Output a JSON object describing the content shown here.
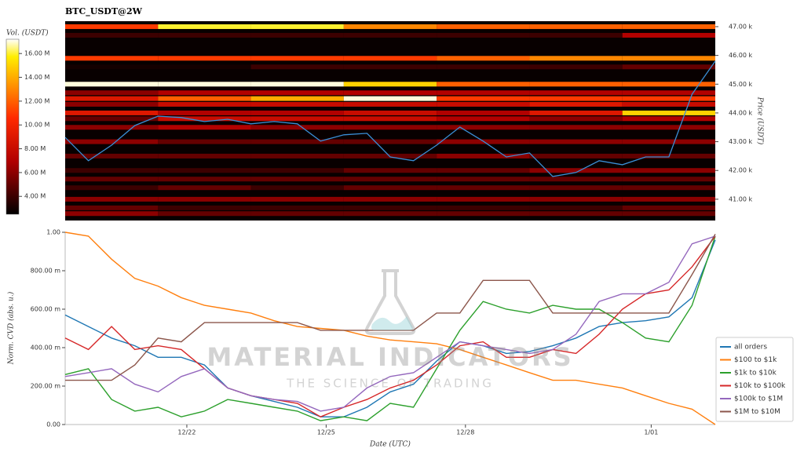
{
  "chart_data": [
    {
      "type": "heatmap",
      "title": "BTC_USDT@2W",
      "y_label": "Price (USDT)",
      "x": [
        0,
        0.5,
        1,
        1.5,
        2,
        2.5,
        3,
        3.5,
        4,
        4.5,
        5,
        5.5,
        6,
        6.5,
        7,
        7.5,
        8,
        8.5,
        9,
        9.5,
        10,
        10.5,
        11,
        11.5,
        12,
        12.5,
        13,
        13.5,
        14
      ],
      "xlim": [
        0,
        14
      ],
      "ylim": [
        40260,
        47190
      ],
      "yticks": [
        {
          "value": 41000,
          "label": "41.00 k"
        },
        {
          "value": 42000,
          "label": "42.00 k"
        },
        {
          "value": 43000,
          "label": "43.00 k"
        },
        {
          "value": 44000,
          "label": "44.00 k"
        },
        {
          "value": 45000,
          "label": "45.00 k"
        },
        {
          "value": 46000,
          "label": "46.00 k"
        },
        {
          "value": 47000,
          "label": "47.00 k"
        }
      ],
      "series": [
        {
          "color": "#3a8fd6",
          "values": [
            43150,
            42340,
            42880,
            43560,
            43890,
            43840,
            43700,
            43780,
            43620,
            43700,
            43620,
            43020,
            43240,
            43290,
            42470,
            42340,
            42880,
            43510,
            43020,
            42470,
            42610,
            41790,
            41930,
            42340,
            42200,
            42470,
            42470,
            44650,
            45800
          ]
        }
      ],
      "heatmap": {
        "x_edges": [
          0,
          2,
          4,
          6,
          8,
          10,
          12,
          14
        ],
        "price_levels": [
          47000,
          46700,
          45900,
          45600,
          45000,
          44700,
          44500,
          44300,
          44000,
          43800,
          43500,
          43000,
          42500,
          42000,
          41700,
          41400,
          41000,
          40700,
          40500
        ],
        "values": [
          [
            11000000.0,
            16000000.0,
            16000000.0,
            13000000.0,
            12000000.0,
            12000000.0,
            12000000.0
          ],
          [
            4000000.0,
            4000000.0,
            4000000.0,
            4000000.0,
            4000000.0,
            4000000.0,
            7000000.0
          ],
          [
            11000000.0,
            11000000.0,
            11000000.0,
            11000000.0,
            12000000.0,
            13000000.0,
            13000000.0
          ],
          [
            3000000.0,
            3000000.0,
            4000000.0,
            4000000.0,
            4000000.0,
            4000000.0,
            5000000.0
          ],
          [
            17000000.0,
            17000000.0,
            17000000.0,
            15000000.0,
            12000000.0,
            12000000.0,
            12000000.0
          ],
          [
            6000000.0,
            7000000.0,
            7000000.0,
            7000000.0,
            7000000.0,
            7000000.0,
            7000000.0
          ],
          [
            9000000.0,
            12000000.0,
            14000000.0,
            17000000.0,
            11000000.0,
            11000000.0,
            11000000.0
          ],
          [
            6000000.0,
            8000000.0,
            8000000.0,
            8000000.0,
            8000000.0,
            9000000.0,
            8000000.0
          ],
          [
            9000000.0,
            7000000.0,
            7000000.0,
            8000000.0,
            7000000.0,
            9000000.0,
            15000000.0
          ],
          [
            5000000.0,
            8000000.0,
            8000000.0,
            8000000.0,
            7000000.0,
            6000000.0,
            7000000.0
          ],
          [
            6000000.0,
            7000000.0,
            6000000.0,
            6000000.0,
            6000000.0,
            6000000.0,
            6000000.0
          ],
          [
            6000000.0,
            5000000.0,
            5000000.0,
            5000000.0,
            6000000.0,
            6000000.0,
            6000000.0
          ],
          [
            5000000.0,
            5000000.0,
            5000000.0,
            5000000.0,
            6000000.0,
            5000000.0,
            5000000.0
          ],
          [
            4000000.0,
            4000000.0,
            4000000.0,
            5000000.0,
            5000000.0,
            6000000.0,
            6000000.0
          ],
          [
            5000000.0,
            5000000.0,
            5000000.0,
            5000000.0,
            5000000.0,
            5000000.0,
            5000000.0
          ],
          [
            4000000.0,
            5000000.0,
            4000000.0,
            5000000.0,
            5000000.0,
            5000000.0,
            5000000.0
          ],
          [
            6000000.0,
            6000000.0,
            6000000.0,
            6000000.0,
            6000000.0,
            6000000.0,
            6000000.0
          ],
          [
            5000000.0,
            4000000.0,
            4000000.0,
            4000000.0,
            4000000.0,
            4000000.0,
            5000000.0
          ],
          [
            6000000.0,
            5000000.0,
            5000000.0,
            5000000.0,
            5000000.0,
            5000000.0,
            5000000.0
          ]
        ]
      },
      "colorbar": {
        "label": "Vol. (USDT)",
        "clim": [
          2500000,
          17200000
        ],
        "ticks": [
          {
            "value": 4000000,
            "label": "4.00 M"
          },
          {
            "value": 6000000,
            "label": "6.00 M"
          },
          {
            "value": 8000000,
            "label": "8.00 M"
          },
          {
            "value": 10000000,
            "label": "10.00 M"
          },
          {
            "value": 12000000,
            "label": "12.00 M"
          },
          {
            "value": 14000000,
            "label": "14.00 M"
          },
          {
            "value": 16000000,
            "label": "16.00 M"
          }
        ]
      }
    },
    {
      "type": "line",
      "x_label": "Date (UTC)",
      "y_label": "Norm. CVD (abs. u.)",
      "watermark": {
        "title": "MATERIAL INDICATORS",
        "subtitle": "THE SCIENCE OF TRADING"
      },
      "x": [
        0,
        0.5,
        1,
        1.5,
        2,
        2.5,
        3,
        3.5,
        4,
        4.5,
        5,
        5.5,
        6,
        6.5,
        7,
        7.5,
        8,
        8.5,
        9,
        9.5,
        10,
        10.5,
        11,
        11.5,
        12,
        12.5,
        13,
        13.5,
        14
      ],
      "xlim": [
        0,
        14
      ],
      "ylim": [
        0,
        1
      ],
      "xticks": [
        {
          "value": 2.62,
          "label": "12/22"
        },
        {
          "value": 5.62,
          "label": "12/25"
        },
        {
          "value": 8.62,
          "label": "12/28"
        },
        {
          "value": 12.62,
          "label": "1/01"
        }
      ],
      "yticks": [
        {
          "value": 0,
          "label": "0.00"
        },
        {
          "value": 0.2,
          "label": "200.00 m"
        },
        {
          "value": 0.4,
          "label": "400.00 m"
        },
        {
          "value": 0.6,
          "label": "600.00 m"
        },
        {
          "value": 0.8,
          "label": "800.00 m"
        },
        {
          "value": 1,
          "label": "1.00"
        }
      ],
      "legend": "lower right",
      "series": [
        {
          "name": "all orders",
          "color": "#1f77b4",
          "values": [
            0.57,
            0.51,
            0.45,
            0.41,
            0.35,
            0.35,
            0.31,
            0.19,
            0.15,
            0.12,
            0.09,
            0.04,
            0.04,
            0.09,
            0.17,
            0.21,
            0.33,
            0.43,
            0.41,
            0.37,
            0.38,
            0.41,
            0.45,
            0.51,
            0.53,
            0.54,
            0.56,
            0.66,
            0.96
          ]
        },
        {
          "name": "$100 to $1k",
          "color": "#ff7f0e",
          "values": [
            1.0,
            0.98,
            0.86,
            0.76,
            0.72,
            0.66,
            0.62,
            0.6,
            0.58,
            0.54,
            0.51,
            0.5,
            0.49,
            0.46,
            0.44,
            0.43,
            0.42,
            0.39,
            0.35,
            0.31,
            0.27,
            0.23,
            0.23,
            0.21,
            0.19,
            0.15,
            0.11,
            0.08,
            0.0
          ]
        },
        {
          "name": "$1k to $10k",
          "color": "#2ca02c",
          "values": [
            0.26,
            0.29,
            0.13,
            0.07,
            0.09,
            0.04,
            0.07,
            0.13,
            0.11,
            0.09,
            0.07,
            0.02,
            0.04,
            0.02,
            0.11,
            0.09,
            0.29,
            0.49,
            0.64,
            0.6,
            0.58,
            0.62,
            0.6,
            0.6,
            0.53,
            0.45,
            0.43,
            0.62,
            0.98
          ]
        },
        {
          "name": "$10k to $100k",
          "color": "#d62728",
          "values": [
            0.45,
            0.39,
            0.51,
            0.39,
            0.41,
            0.39,
            0.29,
            0.19,
            0.15,
            0.13,
            0.11,
            0.04,
            0.09,
            0.13,
            0.19,
            0.23,
            0.31,
            0.41,
            0.43,
            0.35,
            0.35,
            0.39,
            0.37,
            0.47,
            0.6,
            0.68,
            0.7,
            0.82,
            0.98
          ]
        },
        {
          "name": "$100k to $1M",
          "color": "#9467bd",
          "values": [
            0.25,
            0.27,
            0.29,
            0.21,
            0.17,
            0.25,
            0.29,
            0.19,
            0.15,
            0.13,
            0.12,
            0.07,
            0.09,
            0.19,
            0.25,
            0.27,
            0.35,
            0.43,
            0.41,
            0.39,
            0.37,
            0.39,
            0.47,
            0.64,
            0.68,
            0.68,
            0.74,
            0.94,
            0.98
          ]
        },
        {
          "name": "$1M to $10M",
          "color": "#8c564b",
          "values": [
            0.23,
            0.23,
            0.23,
            0.31,
            0.45,
            0.43,
            0.53,
            0.53,
            0.53,
            0.53,
            0.53,
            0.49,
            0.49,
            0.49,
            0.49,
            0.49,
            0.58,
            0.58,
            0.75,
            0.75,
            0.75,
            0.58,
            0.58,
            0.58,
            0.58,
            0.58,
            0.58,
            0.78,
            0.99
          ]
        }
      ]
    }
  ]
}
